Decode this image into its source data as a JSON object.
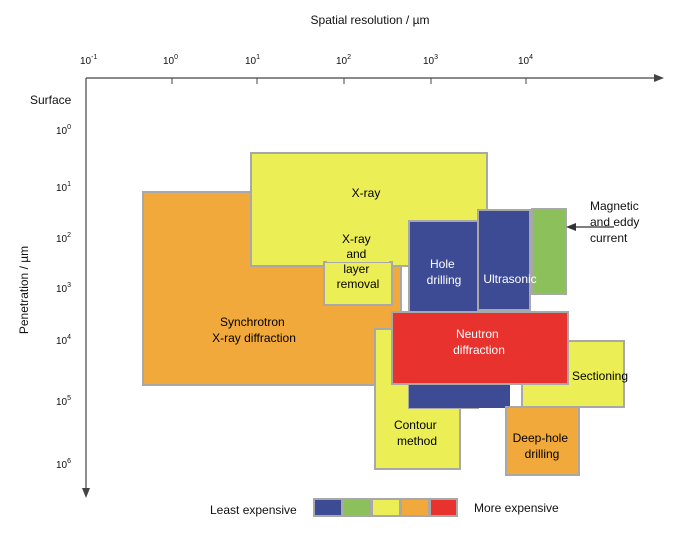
{
  "axes": {
    "x_title": "Spatial resolution / µm",
    "y_title": "Penetration / µm",
    "surface_label": "Surface",
    "tick_base": "10",
    "x_tick_exponents": [
      "-1",
      "0",
      "1",
      "2",
      "3",
      "4"
    ],
    "y_tick_exponents": [
      "0",
      "1",
      "2",
      "3",
      "4",
      "5",
      "6"
    ]
  },
  "methods": [
    {
      "id": "synchrotron",
      "lines": [
        "Synchrotron",
        "X-ray diffraction"
      ],
      "cost": "orange"
    },
    {
      "id": "xray",
      "lines": [
        "X-ray"
      ],
      "cost": "yellow"
    },
    {
      "id": "xray-layer-removal",
      "lines": [
        "X-ray",
        "and",
        "layer",
        "removal"
      ],
      "cost": "yellow"
    },
    {
      "id": "contour",
      "lines": [
        "Contour",
        "method"
      ],
      "cost": "yellow"
    },
    {
      "id": "hole-drilling",
      "lines": [
        "Hole",
        "drilling"
      ],
      "cost": "blue"
    },
    {
      "id": "ultrasonic",
      "lines": [
        "Ultrasonic"
      ],
      "cost": "blue"
    },
    {
      "id": "magnetic",
      "lines": [
        "Magnetic",
        "and eddy",
        "current"
      ],
      "cost": "green"
    },
    {
      "id": "neutron",
      "lines": [
        "Neutron",
        "diffraction"
      ],
      "cost": "red"
    },
    {
      "id": "sectioning",
      "lines": [
        "Sectioning"
      ],
      "cost": "yellow"
    },
    {
      "id": "deep-hole",
      "lines": [
        "Deep-hole",
        "drilling"
      ],
      "cost": "orange"
    }
  ],
  "legend": {
    "least_label": "Least expensive",
    "more_label": "More expensive",
    "swatches": [
      "#3d4b94",
      "#8bc05a",
      "#ecee55",
      "#f2a93b",
      "#e8322d"
    ]
  },
  "colors": {
    "blue": "#3d4b94",
    "green": "#8bc05a",
    "yellow": "#ecee55",
    "orange": "#f2a93b",
    "red": "#e8322d",
    "border": "#a8a8a8"
  }
}
